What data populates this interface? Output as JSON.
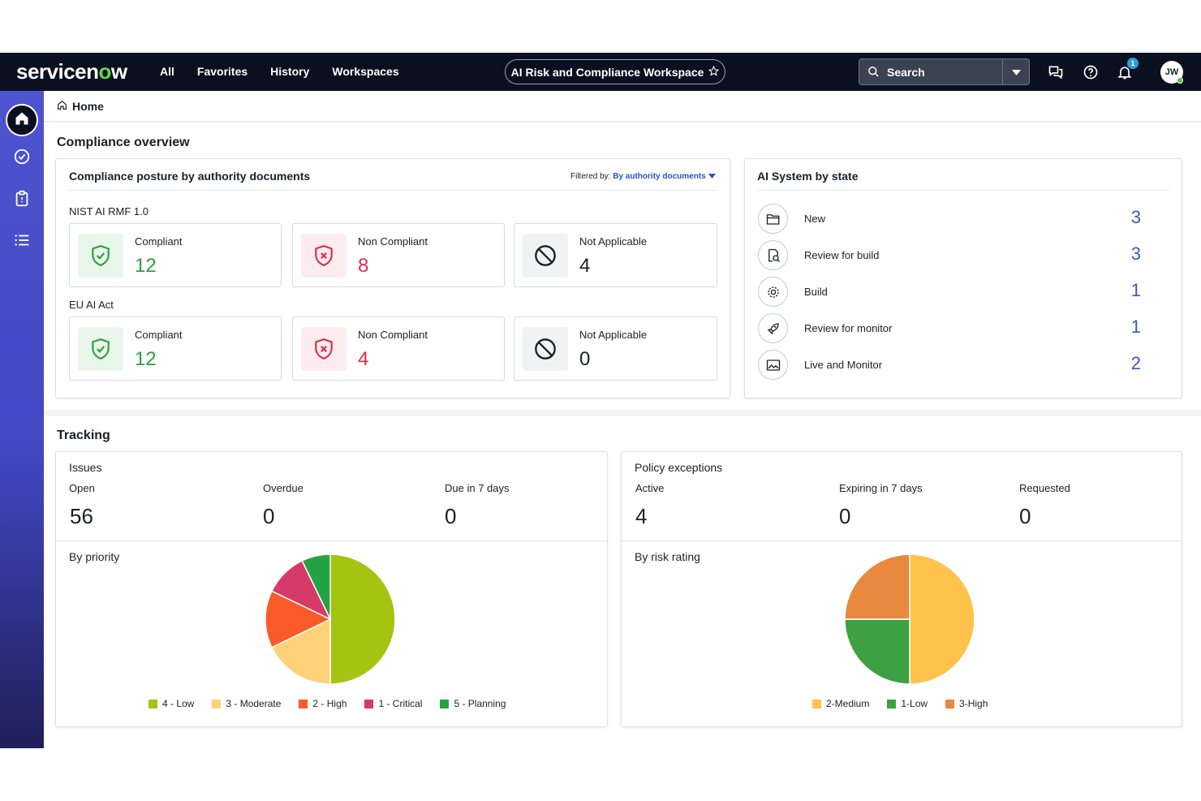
{
  "topbar": {
    "logo": {
      "pre": "servicen",
      "o": "o",
      "post": "w"
    },
    "nav": [
      "All",
      "Favorites",
      "History",
      "Workspaces"
    ],
    "workspace": "AI Risk and Compliance Workspace",
    "search_label": "Search",
    "notification_count": "1",
    "avatar_initials": "JW"
  },
  "breadcrumb": {
    "label": "Home"
  },
  "compliance": {
    "section_title": "Compliance overview",
    "posture": {
      "title": "Compliance posture by authority documents",
      "filter_label": "Filtered by:",
      "filter_value": "By authority documents",
      "documents": [
        {
          "name": "NIST AI RMF 1.0",
          "stats": [
            {
              "label": "Compliant",
              "value": "12",
              "kind": "compliant"
            },
            {
              "label": "Non Compliant",
              "value": "8",
              "kind": "noncompliant"
            },
            {
              "label": "Not Applicable",
              "value": "4",
              "kind": "na"
            }
          ]
        },
        {
          "name": "EU AI Act",
          "stats": [
            {
              "label": "Compliant",
              "value": "12",
              "kind": "compliant"
            },
            {
              "label": "Non Compliant",
              "value": "4",
              "kind": "noncompliant"
            },
            {
              "label": "Not Applicable",
              "value": "0",
              "kind": "na"
            }
          ]
        }
      ]
    },
    "ai_system": {
      "title": "AI System by state",
      "states": [
        {
          "label": "New",
          "value": "3",
          "icon": "folder-icon"
        },
        {
          "label": "Review for build",
          "value": "3",
          "icon": "document-search-icon"
        },
        {
          "label": "Build",
          "value": "1",
          "icon": "gear-icon"
        },
        {
          "label": "Review for monitor",
          "value": "1",
          "icon": "rocket-icon"
        },
        {
          "label": "Live and Monitor",
          "value": "2",
          "icon": "image-icon"
        }
      ]
    }
  },
  "tracking": {
    "section_title": "Tracking",
    "issues": {
      "title": "Issues",
      "metrics": [
        {
          "label": "Open",
          "value": "56"
        },
        {
          "label": "Overdue",
          "value": "0"
        },
        {
          "label": "Due in 7 days",
          "value": "0"
        }
      ],
      "chart_title": "By priority"
    },
    "exceptions": {
      "title": "Policy exceptions",
      "metrics": [
        {
          "label": "Active",
          "value": "4"
        },
        {
          "label": "Expiring in 7 days",
          "value": "0"
        },
        {
          "label": "Requested",
          "value": "0"
        }
      ],
      "chart_title": "By risk rating"
    }
  },
  "chart_data": [
    {
      "type": "pie",
      "title": "By priority",
      "categories": [
        "4 - Low",
        "3 - Moderate",
        "2 - High",
        "1 - Critical",
        "5 - Planning"
      ],
      "values": [
        28,
        10,
        8,
        6,
        4
      ],
      "colors": [
        "#a5c412",
        "#ffd27a",
        "#fb5a2b",
        "#d63a68",
        "#24a344"
      ],
      "legend": "bottom"
    },
    {
      "type": "pie",
      "title": "By risk rating",
      "categories": [
        "2-Medium",
        "1-Low",
        "3-High"
      ],
      "values": [
        2,
        1,
        1
      ],
      "colors": [
        "#ffc24a",
        "#3da043",
        "#e9883f"
      ],
      "legend": "bottom"
    }
  ]
}
